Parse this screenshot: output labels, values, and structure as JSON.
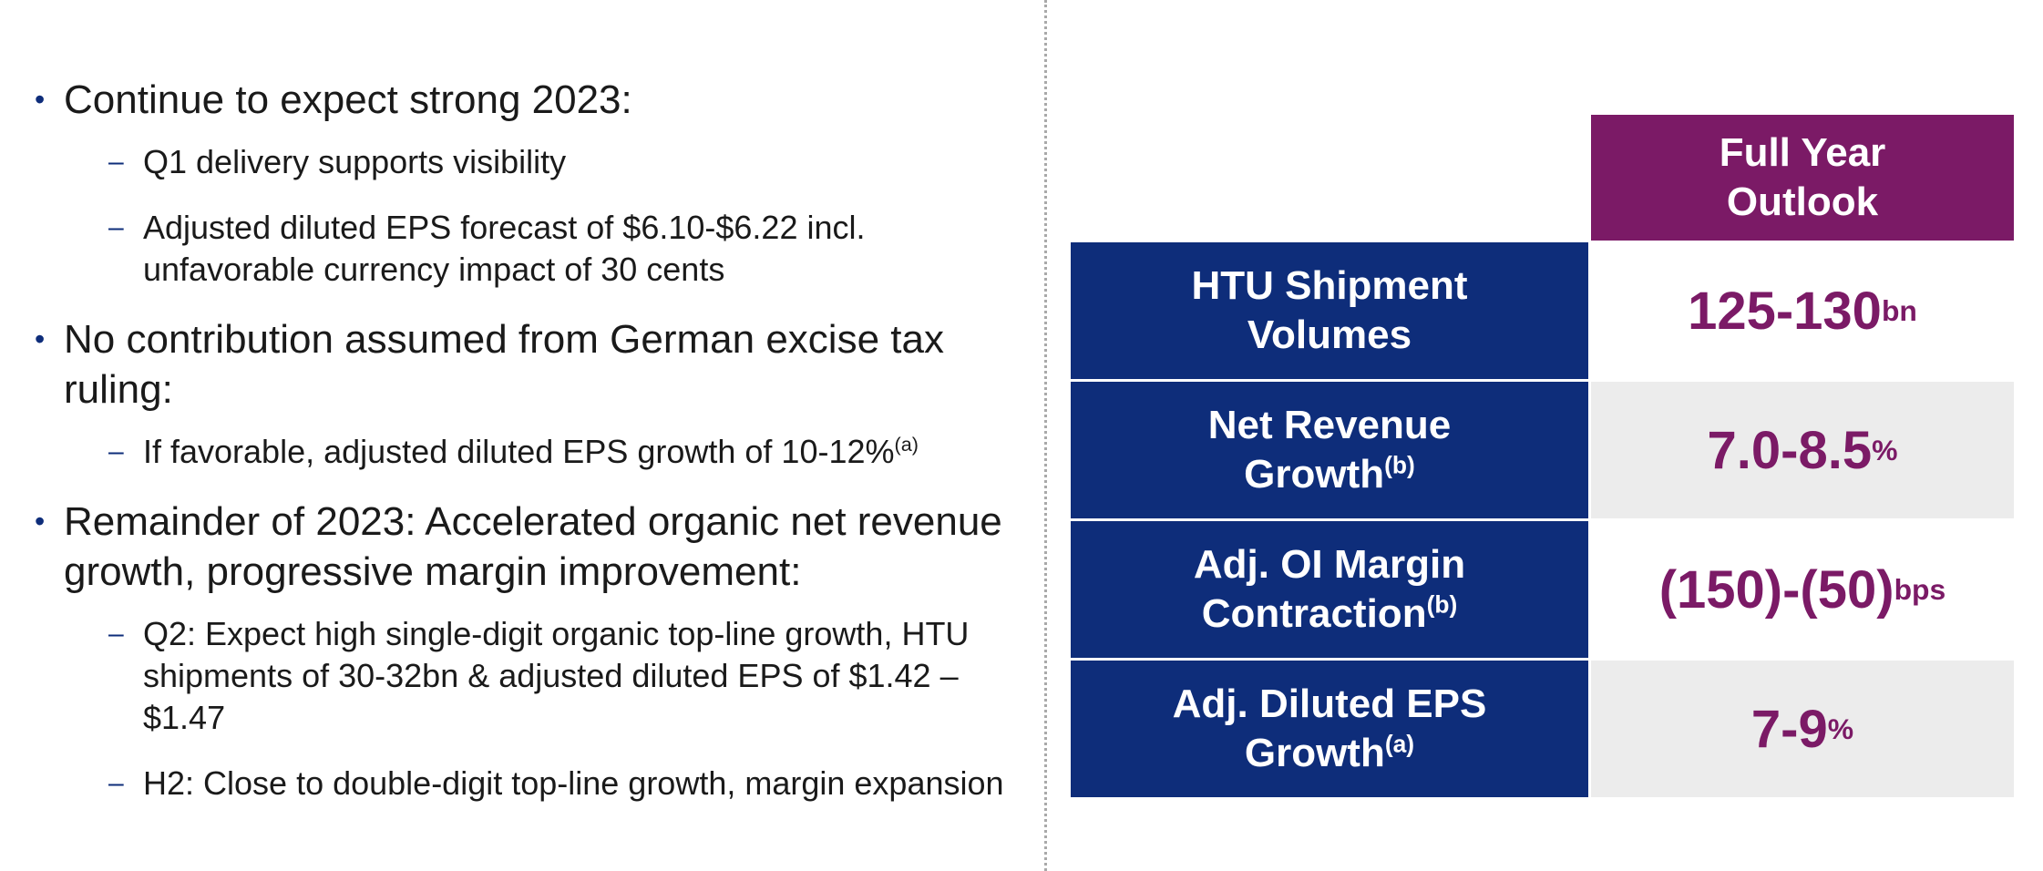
{
  "bullets": [
    {
      "text": "Continue to expect strong 2023:",
      "subs": [
        {
          "text": "Q1 delivery supports visibility"
        },
        {
          "text": "Adjusted diluted EPS forecast of $6.10-$6.22 incl. unfavorable currency impact of 30 cents"
        }
      ]
    },
    {
      "text": "No contribution assumed from German excise tax ruling:",
      "subs": [
        {
          "text": "If favorable, adjusted diluted EPS growth of 10-12%",
          "sup": "(a)"
        }
      ]
    },
    {
      "text": "Remainder of 2023: Accelerated organic net revenue growth, progressive margin improvement:",
      "subs": [
        {
          "text": "Q2: Expect high single-digit organic top-line growth, HTU shipments of 30-32bn & adjusted diluted EPS of $1.42 – $1.47"
        },
        {
          "text": "H2: Close to double-digit top-line growth, margin expansion"
        }
      ]
    }
  ],
  "outlook": {
    "header_line1": "Full Year",
    "header_line2": "Outlook",
    "rows": [
      {
        "label_line1": "HTU Shipment",
        "label_line2": "Volumes",
        "label_sup": "",
        "value": "125-130",
        "value_sup": "bn"
      },
      {
        "label_line1": "Net Revenue",
        "label_line2": "Growth",
        "label_sup": "(b)",
        "value": "7.0-8.5",
        "value_sup": "%"
      },
      {
        "label_line1": "Adj. OI Margin",
        "label_line2": "Contraction",
        "label_sup": "(b)",
        "value": "(150)-(50)",
        "value_sup": "bps"
      },
      {
        "label_line1": "Adj. Diluted EPS",
        "label_line2": "Growth",
        "label_sup": "(a)",
        "value": "7-9",
        "value_sup": "%"
      }
    ]
  },
  "colors": {
    "navy": "#0e2d7a",
    "purple": "#7b1a66",
    "grey_cell": "#ececec"
  }
}
